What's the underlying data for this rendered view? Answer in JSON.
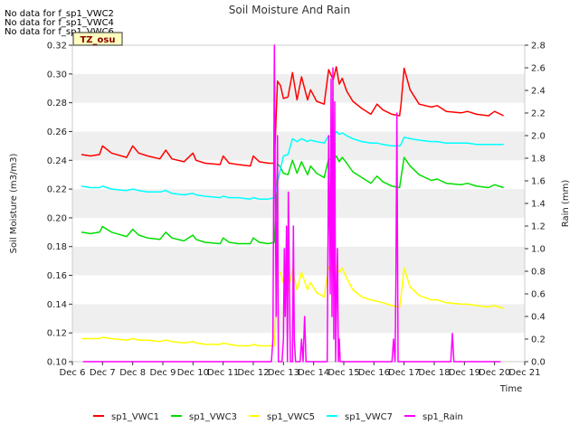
{
  "chart_data": {
    "type": "line",
    "title": "Soil Moisture And Rain",
    "xlabel": "Time",
    "ylabel_left": "Soil Moisture (m3/m3)",
    "ylabel_right": "Rain (mm)",
    "xlim": [
      6,
      21
    ],
    "ylim_left": [
      0.1,
      0.32
    ],
    "ylim_right": [
      0.0,
      2.8
    ],
    "x_ticks": [
      6,
      7,
      8,
      9,
      10,
      11,
      12,
      13,
      14,
      15,
      16,
      17,
      18,
      19,
      20,
      21
    ],
    "x_tick_labels": [
      "Dec 6",
      "Dec 7",
      "Dec 8",
      "Dec 9",
      "Dec 10",
      "Dec 11",
      "Dec 12",
      "Dec 13",
      "Dec 14",
      "Dec 15",
      "Dec 16",
      "Dec 17",
      "Dec 18",
      "Dec 19",
      "Dec 20",
      "Dec 21"
    ],
    "y_left_ticks": [
      0.1,
      0.12,
      0.14,
      0.16,
      0.18,
      0.2,
      0.22,
      0.24,
      0.26,
      0.28,
      0.3,
      0.32
    ],
    "y_left_tick_labels": [
      "0.10",
      "0.12",
      "0.14",
      "0.16",
      "0.18",
      "0.20",
      "0.22",
      "0.24",
      "0.26",
      "0.28",
      "0.30",
      "0.32"
    ],
    "y_right_ticks": [
      0.0,
      0.2,
      0.4,
      0.6,
      0.8,
      1.0,
      1.2,
      1.4,
      1.6,
      1.8,
      2.0,
      2.2,
      2.4,
      2.6,
      2.8
    ],
    "y_right_tick_labels": [
      "0.0",
      "0.2",
      "0.4",
      "0.6",
      "0.8",
      "1.0",
      "1.2",
      "1.4",
      "1.6",
      "1.8",
      "2.0",
      "2.2",
      "2.4",
      "2.6",
      "2.8"
    ],
    "grid": "horizontal bands",
    "legend_placement": "bottom",
    "notes": [
      "No data for f_sp1_VWC2",
      "No data for f_sp1_VWC4",
      "No data for f_sp1_VWC6"
    ],
    "timezone_label": "TZ_osu",
    "series": [
      {
        "name": "sp1_VWC1",
        "color": "#ff0000",
        "axis": "left",
        "x": [
          6.3,
          6.6,
          6.9,
          7.0,
          7.3,
          7.8,
          8.0,
          8.2,
          8.5,
          8.9,
          9.1,
          9.3,
          9.7,
          10.0,
          10.1,
          10.4,
          10.9,
          11.0,
          11.2,
          11.5,
          11.9,
          12.0,
          12.2,
          12.5,
          12.7,
          12.8,
          12.9,
          13.0,
          13.15,
          13.3,
          13.45,
          13.6,
          13.8,
          13.9,
          14.1,
          14.35,
          14.5,
          14.65,
          14.75,
          14.85,
          14.95,
          15.1,
          15.3,
          15.6,
          15.9,
          16.1,
          16.3,
          16.6,
          16.85,
          16.9,
          17.0,
          17.2,
          17.5,
          17.9,
          18.1,
          18.4,
          18.9,
          19.1,
          19.4,
          19.8,
          20.0,
          20.3
        ],
        "y": [
          0.244,
          0.243,
          0.244,
          0.25,
          0.245,
          0.242,
          0.25,
          0.245,
          0.243,
          0.241,
          0.247,
          0.241,
          0.239,
          0.245,
          0.24,
          0.238,
          0.237,
          0.243,
          0.238,
          0.237,
          0.236,
          0.243,
          0.239,
          0.238,
          0.238,
          0.295,
          0.292,
          0.283,
          0.284,
          0.301,
          0.282,
          0.298,
          0.282,
          0.289,
          0.281,
          0.279,
          0.303,
          0.296,
          0.305,
          0.293,
          0.297,
          0.288,
          0.281,
          0.276,
          0.272,
          0.279,
          0.275,
          0.272,
          0.271,
          0.279,
          0.304,
          0.289,
          0.279,
          0.277,
          0.278,
          0.274,
          0.273,
          0.274,
          0.272,
          0.271,
          0.274,
          0.271
        ]
      },
      {
        "name": "sp1_VWC3",
        "color": "#00dd00",
        "axis": "left",
        "x": [
          6.3,
          6.6,
          6.9,
          7.0,
          7.3,
          7.8,
          8.0,
          8.2,
          8.5,
          8.9,
          9.1,
          9.3,
          9.7,
          10.0,
          10.1,
          10.4,
          10.9,
          11.0,
          11.2,
          11.5,
          11.9,
          12.0,
          12.2,
          12.5,
          12.7,
          12.8,
          12.9,
          13.0,
          13.15,
          13.3,
          13.45,
          13.6,
          13.8,
          13.9,
          14.1,
          14.35,
          14.5,
          14.65,
          14.75,
          14.85,
          14.95,
          15.1,
          15.3,
          15.6,
          15.9,
          16.1,
          16.3,
          16.6,
          16.85,
          16.9,
          17.0,
          17.2,
          17.5,
          17.9,
          18.1,
          18.4,
          18.9,
          19.1,
          19.4,
          19.8,
          20.0,
          20.3
        ],
        "y": [
          0.19,
          0.189,
          0.19,
          0.194,
          0.19,
          0.187,
          0.192,
          0.188,
          0.186,
          0.185,
          0.19,
          0.186,
          0.184,
          0.188,
          0.185,
          0.183,
          0.182,
          0.186,
          0.183,
          0.182,
          0.182,
          0.186,
          0.183,
          0.182,
          0.183,
          0.238,
          0.235,
          0.231,
          0.23,
          0.24,
          0.231,
          0.239,
          0.23,
          0.236,
          0.231,
          0.228,
          0.241,
          0.24,
          0.243,
          0.239,
          0.242,
          0.238,
          0.232,
          0.228,
          0.224,
          0.229,
          0.225,
          0.222,
          0.221,
          0.228,
          0.242,
          0.236,
          0.23,
          0.226,
          0.227,
          0.224,
          0.223,
          0.224,
          0.222,
          0.221,
          0.223,
          0.221
        ]
      },
      {
        "name": "sp1_VWC5",
        "color": "#ffff00",
        "axis": "left",
        "x": [
          6.3,
          6.6,
          6.9,
          7.0,
          7.3,
          7.8,
          8.0,
          8.2,
          8.5,
          8.9,
          9.1,
          9.3,
          9.7,
          10.0,
          10.1,
          10.4,
          10.9,
          11.0,
          11.2,
          11.5,
          11.9,
          12.0,
          12.2,
          12.5,
          12.7,
          12.8,
          12.9,
          13.0,
          13.15,
          13.3,
          13.45,
          13.6,
          13.8,
          13.9,
          14.1,
          14.35,
          14.5,
          14.65,
          14.75,
          14.85,
          14.95,
          15.1,
          15.3,
          15.6,
          15.9,
          16.1,
          16.3,
          16.6,
          16.85,
          16.9,
          17.0,
          17.2,
          17.5,
          17.9,
          18.1,
          18.4,
          18.9,
          19.1,
          19.4,
          19.8,
          20.0,
          20.3
        ],
        "y": [
          0.116,
          0.116,
          0.116,
          0.117,
          0.116,
          0.115,
          0.116,
          0.115,
          0.115,
          0.114,
          0.115,
          0.114,
          0.113,
          0.114,
          0.113,
          0.112,
          0.112,
          0.113,
          0.112,
          0.111,
          0.111,
          0.112,
          0.111,
          0.111,
          0.111,
          0.16,
          0.162,
          0.155,
          0.148,
          0.164,
          0.15,
          0.162,
          0.15,
          0.155,
          0.148,
          0.145,
          0.166,
          0.16,
          0.167,
          0.162,
          0.165,
          0.158,
          0.15,
          0.145,
          0.143,
          0.142,
          0.141,
          0.139,
          0.138,
          0.145,
          0.165,
          0.152,
          0.146,
          0.143,
          0.143,
          0.141,
          0.14,
          0.14,
          0.139,
          0.138,
          0.139,
          0.137
        ]
      },
      {
        "name": "sp1_VWC7",
        "color": "#00ffff",
        "axis": "left",
        "x": [
          6.3,
          6.6,
          6.9,
          7.0,
          7.3,
          7.8,
          8.0,
          8.2,
          8.5,
          8.9,
          9.1,
          9.3,
          9.7,
          10.0,
          10.1,
          10.4,
          10.9,
          11.0,
          11.2,
          11.5,
          11.9,
          12.0,
          12.2,
          12.5,
          12.7,
          12.8,
          12.9,
          13.0,
          13.15,
          13.3,
          13.45,
          13.6,
          13.8,
          13.9,
          14.1,
          14.35,
          14.5,
          14.65,
          14.75,
          14.85,
          14.95,
          15.1,
          15.3,
          15.6,
          15.9,
          16.1,
          16.3,
          16.6,
          16.85,
          16.9,
          17.0,
          17.2,
          17.5,
          17.9,
          18.1,
          18.4,
          18.9,
          19.1,
          19.4,
          19.8,
          20.0,
          20.3
        ],
        "y": [
          0.222,
          0.221,
          0.221,
          0.222,
          0.22,
          0.219,
          0.22,
          0.219,
          0.218,
          0.218,
          0.219,
          0.217,
          0.216,
          0.217,
          0.216,
          0.215,
          0.214,
          0.215,
          0.214,
          0.214,
          0.213,
          0.214,
          0.213,
          0.213,
          0.214,
          0.224,
          0.234,
          0.243,
          0.244,
          0.255,
          0.253,
          0.255,
          0.253,
          0.254,
          0.253,
          0.252,
          0.257,
          0.256,
          0.26,
          0.258,
          0.259,
          0.257,
          0.255,
          0.253,
          0.252,
          0.252,
          0.251,
          0.25,
          0.25,
          0.251,
          0.256,
          0.255,
          0.254,
          0.253,
          0.253,
          0.252,
          0.252,
          0.252,
          0.251,
          0.251,
          0.251,
          0.251
        ]
      },
      {
        "name": "sp1_Rain",
        "color": "#ff00ff",
        "axis": "right",
        "x": [
          6.35,
          12.6,
          12.65,
          12.7,
          12.73,
          12.76,
          12.8,
          12.83,
          12.86,
          12.9,
          12.95,
          13.0,
          13.03,
          13.06,
          13.1,
          13.13,
          13.16,
          13.2,
          13.23,
          13.26,
          13.3,
          13.33,
          13.36,
          13.4,
          13.43,
          13.46,
          13.5,
          13.55,
          13.6,
          13.65,
          13.7,
          13.75,
          13.8,
          13.85,
          13.9,
          13.95,
          14.0,
          14.45,
          14.5,
          14.55,
          14.58,
          14.61,
          14.64,
          14.67,
          14.7,
          14.73,
          14.76,
          14.79,
          14.82,
          14.85,
          14.88,
          14.91,
          14.94,
          14.97,
          15.0,
          15.05,
          16.6,
          16.65,
          16.7,
          16.73,
          16.76,
          16.8,
          16.85,
          16.9,
          18.5,
          18.55,
          18.6,
          18.65,
          20.2
        ],
        "y": [
          0.0,
          0.0,
          0.2,
          2.8,
          1.4,
          0.4,
          2.0,
          0.0,
          0.0,
          0.0,
          0.0,
          0.2,
          1.0,
          0.4,
          1.2,
          0.0,
          1.5,
          0.6,
          0.0,
          0.0,
          0.0,
          1.2,
          0.2,
          0.0,
          0.0,
          0.0,
          0.0,
          0.0,
          0.2,
          0.0,
          0.4,
          0.0,
          0.0,
          0.0,
          0.0,
          0.0,
          0.0,
          0.0,
          2.0,
          0.6,
          2.5,
          0.4,
          2.6,
          0.2,
          2.3,
          0.0,
          0.6,
          1.0,
          0.0,
          0.2,
          0.0,
          0.0,
          0.0,
          0.0,
          0.0,
          0.0,
          0.0,
          0.2,
          0.0,
          0.8,
          2.2,
          0.0,
          0.0,
          0.0,
          0.0,
          0.0,
          0.25,
          0.0,
          0.0
        ]
      }
    ]
  }
}
